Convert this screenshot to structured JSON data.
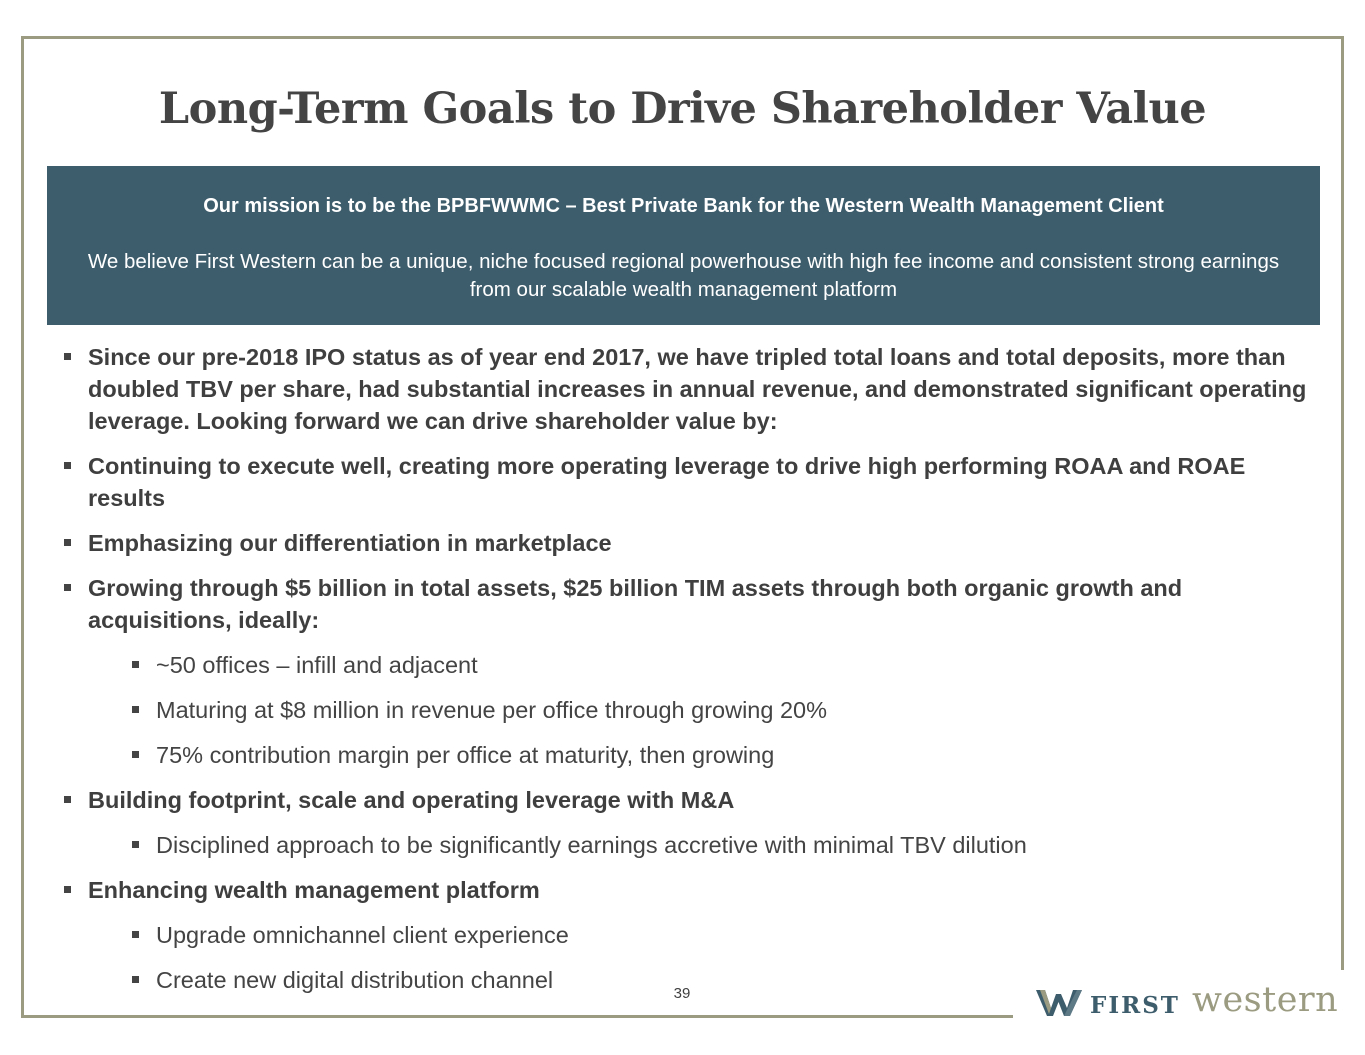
{
  "title": "Long-Term Goals to Drive Shareholder Value",
  "mission": {
    "heading": "Our mission is to be the BPBFWWMC – Best Private Bank for the Western Wealth Management Client",
    "body": "We believe First Western can be a unique, niche focused regional powerhouse with high fee income and consistent strong earnings from our scalable wealth management platform"
  },
  "bullets": [
    {
      "text": "Since our pre-2018 IPO status as of year end 2017, we have tripled total loans and total deposits, more than doubled TBV per share, had substantial increases in annual revenue, and demonstrated significant operating leverage. Looking forward we can drive shareholder value by:"
    },
    {
      "text": "Continuing to execute well, creating more operating leverage to drive high performing ROAA and ROAE results"
    },
    {
      "text": "Emphasizing our differentiation in marketplace"
    },
    {
      "text": "Growing through $5 billion in total assets, $25 billion TIM assets through both organic growth and acquisitions, ideally:",
      "sub": [
        "~50 offices – infill and adjacent",
        "Maturing at $8 million in revenue per office through growing 20%",
        "75% contribution margin per office at maturity, then growing"
      ]
    },
    {
      "text": "Building footprint, scale and operating leverage with M&A",
      "sub": [
        "Disciplined approach to be significantly earnings accretive with minimal TBV dilution"
      ]
    },
    {
      "text": "Enhancing wealth management platform",
      "sub": [
        "Upgrade omnichannel client experience",
        "Create new digital distribution channel"
      ]
    }
  ],
  "page_number": "39",
  "logo": {
    "first": "FIRST",
    "western": "western",
    "colors": {
      "navy": "#3e5d6c",
      "olive": "#9a9b80"
    },
    "icon": "w-mark-icon"
  }
}
